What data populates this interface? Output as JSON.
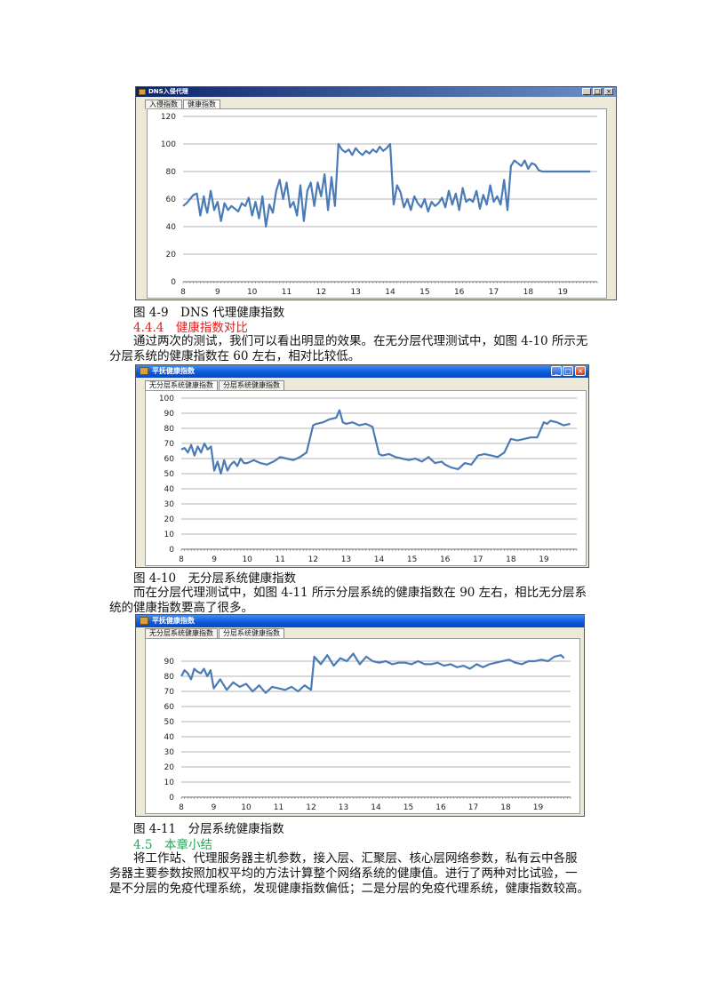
{
  "figures": [
    {
      "id": "fig49",
      "window_title": "DNS入侵代理",
      "tabs": [
        "入侵指数",
        "健康指数"
      ],
      "active_tab": 1,
      "caption": "图 4-9　DNS 代理健康指数",
      "chart_data": {
        "type": "line",
        "title": "",
        "xlabel": "",
        "ylabel": "",
        "x_ticks": [
          8,
          9,
          10,
          11,
          12,
          13,
          14,
          15,
          16,
          17,
          18,
          19
        ],
        "y_ticks": [
          0,
          20,
          40,
          60,
          80,
          100,
          120
        ],
        "ylim": [
          0,
          120
        ],
        "xlim": [
          8,
          20
        ],
        "grid": true,
        "color": "#4a7bb7",
        "series": [
          {
            "x": [
              8.0,
              8.1,
              8.2,
              8.3,
              8.4,
              8.5,
              8.6,
              8.65,
              8.7,
              8.8,
              8.9,
              9.0,
              9.1,
              9.2,
              9.3,
              9.4,
              9.5,
              9.6,
              9.7,
              9.8,
              9.9,
              10.0,
              10.1,
              10.2,
              10.3,
              10.4,
              10.5,
              10.6,
              10.7,
              10.8,
              10.9,
              11.0,
              11.1,
              11.2,
              11.3,
              11.4,
              11.5,
              11.6,
              11.7,
              11.8,
              11.9,
              12.0,
              12.1,
              12.2,
              12.3,
              12.4,
              12.5,
              12.6,
              12.7,
              12.8,
              12.9,
              13.0,
              13.1,
              13.2,
              13.3,
              13.4,
              13.5,
              13.6,
              13.7,
              13.8,
              13.9,
              14.0,
              14.1,
              14.2,
              14.3,
              14.4,
              14.5,
              14.6,
              14.7,
              14.8,
              14.9,
              15.0,
              15.1,
              15.2,
              15.3,
              15.4,
              15.5,
              15.6,
              15.7,
              15.8,
              15.9,
              16.0,
              16.1,
              16.2,
              16.3,
              16.4,
              16.5,
              16.6,
              16.7,
              16.8,
              16.9,
              17.0,
              17.1,
              17.2,
              17.3,
              17.4,
              17.5,
              17.6,
              17.7,
              17.8,
              17.9,
              18.0,
              18.1,
              18.2,
              18.3,
              18.4,
              18.5,
              18.6,
              18.7,
              18.8,
              18.9,
              19.0,
              19.1,
              19.2,
              19.3,
              19.4,
              19.5,
              19.6,
              19.7,
              19.8
            ],
            "y": [
              55,
              57,
              60,
              63,
              64,
              48,
              62,
              55,
              50,
              66,
              52,
              58,
              44,
              57,
              52,
              55,
              53,
              51,
              57,
              55,
              61,
              48,
              58,
              46,
              62,
              40,
              56,
              50,
              66,
              74,
              60,
              72,
              54,
              58,
              48,
              70,
              44,
              66,
              72,
              55,
              72,
              62,
              78,
              52,
              76,
              55,
              100,
              96,
              94,
              96,
              92,
              97,
              94,
              92,
              95,
              93,
              96,
              94,
              98,
              95,
              97,
              100,
              56,
              70,
              65,
              54,
              60,
              52,
              62,
              57,
              54,
              60,
              51,
              58,
              55,
              57,
              61,
              54,
              66,
              56,
              64,
              52,
              68,
              58,
              60,
              58,
              66,
              53,
              63,
              56,
              70,
              58,
              62,
              56,
              74,
              52,
              84,
              88,
              86,
              84,
              88,
              82,
              86,
              85,
              81,
              80,
              80,
              80,
              80,
              80,
              80,
              80,
              80,
              80,
              80,
              80,
              80,
              80,
              80,
              80
            ]
          }
        ]
      }
    },
    {
      "id": "fig410",
      "window_title": "平抚健康指数",
      "tabs": [
        "无分层系统健康指数",
        "分层系统健康指数"
      ],
      "active_tab": 0,
      "caption": "图 4-10　无分层系统健康指数",
      "chart_data": {
        "type": "line",
        "title": "",
        "xlabel": "",
        "ylabel": "",
        "x_ticks": [
          8,
          9,
          10,
          11,
          12,
          13,
          14,
          15,
          16,
          17,
          18,
          19
        ],
        "y_ticks": [
          0,
          10,
          20,
          30,
          40,
          50,
          60,
          70,
          80,
          90,
          100
        ],
        "ylim": [
          0,
          100
        ],
        "xlim": [
          8,
          20
        ],
        "grid": true,
        "color": "#4a7bb7",
        "series": [
          {
            "x": [
              8.0,
              8.1,
              8.2,
              8.3,
              8.4,
              8.5,
              8.6,
              8.7,
              8.8,
              8.9,
              9.0,
              9.1,
              9.2,
              9.3,
              9.4,
              9.5,
              9.6,
              9.7,
              9.8,
              9.9,
              10.0,
              10.2,
              10.4,
              10.6,
              10.8,
              11.0,
              11.2,
              11.4,
              11.6,
              11.8,
              12.0,
              12.1,
              12.3,
              12.5,
              12.7,
              12.8,
              12.9,
              13.0,
              13.2,
              13.4,
              13.6,
              13.8,
              14.0,
              14.1,
              14.3,
              14.5,
              14.7,
              14.9,
              15.1,
              15.3,
              15.5,
              15.7,
              15.9,
              16.0,
              16.2,
              16.4,
              16.6,
              16.8,
              17.0,
              17.2,
              17.4,
              17.6,
              17.8,
              18.0,
              18.2,
              18.4,
              18.6,
              18.8,
              19.0,
              19.1,
              19.2,
              19.4,
              19.6,
              19.8
            ],
            "y": [
              66,
              67,
              64,
              69,
              62,
              68,
              64,
              70,
              66,
              68,
              52,
              58,
              50,
              59,
              52,
              56,
              58,
              55,
              60,
              57,
              57,
              59,
              57,
              56,
              58,
              61,
              60,
              59,
              61,
              64,
              82,
              83,
              84,
              86,
              87,
              92,
              84,
              83,
              84,
              82,
              83,
              81,
              63,
              62,
              63,
              61,
              60,
              59,
              60,
              58,
              61,
              57,
              58,
              56,
              54,
              53,
              57,
              56,
              62,
              63,
              62,
              61,
              64,
              73,
              72,
              73,
              74,
              74,
              84,
              83,
              85,
              84,
              82,
              83
            ]
          }
        ]
      }
    },
    {
      "id": "fig411",
      "window_title": "平抚健康指数",
      "tabs": [
        "无分层系统健康指数",
        "分层系统健康指数"
      ],
      "active_tab": 1,
      "caption": "图 4-11　分层系统健康指数",
      "chart_data": {
        "type": "line",
        "title": "",
        "xlabel": "",
        "ylabel": "",
        "x_ticks": [
          8,
          9,
          10,
          11,
          12,
          13,
          14,
          15,
          16,
          17,
          18,
          19
        ],
        "y_ticks": [
          0,
          10,
          20,
          30,
          40,
          50,
          60,
          70,
          80,
          90
        ],
        "ylim": [
          0,
          100
        ],
        "xlim": [
          8,
          20
        ],
        "grid": true,
        "color": "#4a7bb7",
        "series": [
          {
            "x": [
              8.0,
              8.1,
              8.2,
              8.3,
              8.4,
              8.5,
              8.6,
              8.7,
              8.8,
              8.9,
              9.0,
              9.2,
              9.4,
              9.6,
              9.8,
              10.0,
              10.2,
              10.4,
              10.6,
              10.8,
              11.0,
              11.2,
              11.4,
              11.6,
              11.8,
              12.0,
              12.1,
              12.3,
              12.5,
              12.7,
              12.9,
              13.1,
              13.3,
              13.5,
              13.7,
              13.9,
              14.1,
              14.3,
              14.5,
              14.7,
              14.9,
              15.1,
              15.3,
              15.5,
              15.7,
              15.9,
              16.1,
              16.3,
              16.5,
              16.7,
              16.9,
              17.1,
              17.3,
              17.5,
              17.7,
              17.9,
              18.1,
              18.3,
              18.5,
              18.7,
              18.9,
              19.1,
              19.3,
              19.5,
              19.7,
              19.8
            ],
            "y": [
              80,
              84,
              82,
              78,
              85,
              83,
              82,
              85,
              80,
              84,
              72,
              78,
              71,
              76,
              73,
              75,
              70,
              74,
              69,
              73,
              72,
              71,
              73,
              70,
              74,
              71,
              93,
              88,
              94,
              87,
              92,
              90,
              95,
              88,
              93,
              90,
              89,
              90,
              88,
              89,
              89,
              88,
              90,
              88,
              88,
              89,
              87,
              88,
              86,
              87,
              85,
              88,
              86,
              88,
              89,
              90,
              91,
              89,
              88,
              90,
              90,
              91,
              90,
              93,
              94,
              92
            ]
          }
        ]
      }
    }
  ],
  "doc": {
    "h444": "4.4.4　健康指数对比",
    "p1_line1": "通过两次的测试，我们可以看出明显的效果。在无分层代理测试中，如图 4-10 所示无",
    "p1_line2": "分层系统的健康指数在 60 左右，相对比较低。",
    "p2_line1": "而在分层代理测试中，如图 4-11 所示分层系统的健康指数在 90 左右，相比无分层系",
    "p2_line2": "统的健康指数要高了很多。",
    "h45": "4.5　本章小结",
    "p3_line1": "将工作站、代理服务器主机参数，接入层、汇聚层、核心层网络参数，私有云中各服",
    "p3_line2": "务器主要参数按照加权平均的方法计算整个网络系统的健康值。进行了两种对比试验，一",
    "p3_line3": "是不分层的免疫代理系统，发现健康指数偏低；二是分层的免疫代理系统，健康指数较高。"
  }
}
